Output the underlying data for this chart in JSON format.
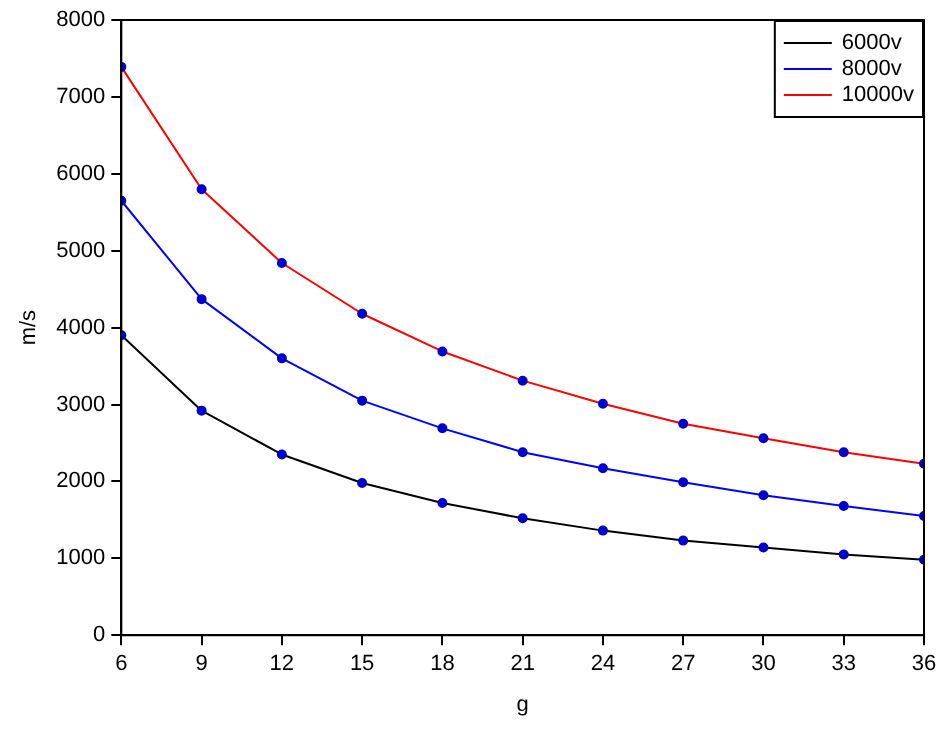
{
  "chart_data": {
    "type": "line",
    "xlabel": "g",
    "ylabel": "m/s",
    "x": [
      6,
      9,
      12,
      15,
      18,
      21,
      24,
      27,
      30,
      33,
      36
    ],
    "xlim": [
      6,
      36
    ],
    "xticks": [
      6,
      9,
      12,
      15,
      18,
      21,
      24,
      27,
      30,
      33,
      36
    ],
    "ylim": [
      0,
      8000
    ],
    "yticks": [
      0,
      1000,
      2000,
      3000,
      4000,
      5000,
      6000,
      7000,
      8000
    ],
    "grid": false,
    "legend": "top right",
    "marker": "circle",
    "line_style": "solid",
    "series": [
      {
        "name": "6000v",
        "color": "#000000",
        "values": [
          3900,
          2920,
          2350,
          1980,
          1720,
          1520,
          1360,
          1230,
          1140,
          1050,
          980
        ]
      },
      {
        "name": "8000v",
        "color": "#0000ff",
        "values": [
          5650,
          4370,
          3600,
          3050,
          2690,
          2380,
          2170,
          1990,
          1820,
          1680,
          1550
        ]
      },
      {
        "name": "10000v",
        "color": "#ff0000",
        "values": [
          7390,
          5800,
          4840,
          4180,
          3690,
          3310,
          3010,
          2750,
          2560,
          2380,
          2230
        ]
      }
    ]
  }
}
